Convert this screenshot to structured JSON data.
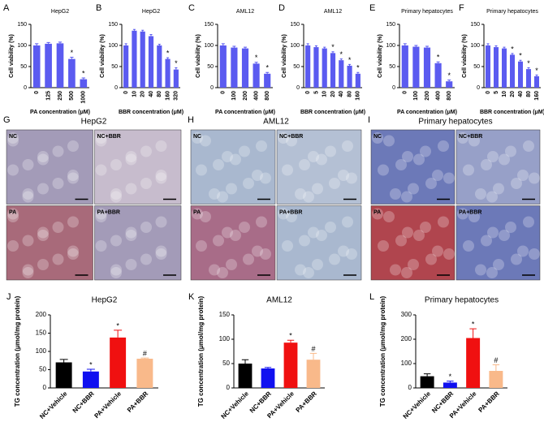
{
  "chart_data": [
    {
      "type": "bar",
      "panel": "A",
      "title": "HepG2",
      "y_label": "Cell viability (%)",
      "x_label": "PA concentration (μM)",
      "color": "#5b5bf0",
      "categories": [
        "0",
        "125",
        "250",
        "500",
        "1000"
      ],
      "values": [
        100,
        104,
        105,
        68,
        20
      ],
      "errors": [
        4,
        3,
        3,
        4,
        3
      ],
      "annotations": [
        null,
        null,
        null,
        "*",
        "*"
      ],
      "ylim": [
        0,
        150
      ],
      "yticks": [
        0,
        50,
        100,
        150
      ]
    },
    {
      "type": "bar",
      "panel": "B",
      "title": "HepG2",
      "y_label": "Cell viability (%)",
      "x_label": "BBR concentration (μM)",
      "color": "#5b5bf0",
      "categories": [
        "0",
        "10",
        "20",
        "40",
        "80",
        "160",
        "320"
      ],
      "values": [
        100,
        135,
        133,
        122,
        100,
        68,
        43
      ],
      "errors": [
        4,
        3,
        3,
        4,
        3,
        3,
        4
      ],
      "annotations": [
        null,
        null,
        null,
        null,
        null,
        "*",
        "*"
      ],
      "ylim": [
        0,
        150
      ],
      "yticks": [
        0,
        50,
        100,
        150
      ]
    },
    {
      "type": "bar",
      "panel": "C",
      "title": "AML12",
      "y_label": "Cell viability (%)",
      "x_label": "PA concentration (μM)",
      "color": "#5b5bf0",
      "categories": [
        "0",
        "100",
        "200",
        "400",
        "800"
      ],
      "values": [
        100,
        95,
        93,
        57,
        33
      ],
      "errors": [
        4,
        3,
        3,
        3,
        3
      ],
      "annotations": [
        null,
        null,
        null,
        "*",
        "*"
      ],
      "ylim": [
        0,
        150
      ],
      "yticks": [
        0,
        50,
        100,
        150
      ]
    },
    {
      "type": "bar",
      "panel": "D",
      "title": "AML12",
      "y_label": "Cell viability (%)",
      "x_label": "BBR concentration (μM)",
      "color": "#5b5bf0",
      "categories": [
        "0",
        "5",
        "10",
        "20",
        "40",
        "80",
        "160"
      ],
      "values": [
        100,
        96,
        93,
        82,
        65,
        52,
        33
      ],
      "errors": [
        4,
        3,
        3,
        3,
        3,
        3,
        3
      ],
      "annotations": [
        null,
        null,
        null,
        "*",
        "*",
        "*",
        "*"
      ],
      "ylim": [
        0,
        150
      ],
      "yticks": [
        0,
        50,
        100,
        150
      ]
    },
    {
      "type": "bar",
      "panel": "E",
      "title": "Primary hepatocytes",
      "y_label": "Cell viability (%)",
      "x_label": "PA concentration (μM)",
      "color": "#5b5bf0",
      "categories": [
        "0",
        "100",
        "200",
        "400",
        "800"
      ],
      "values": [
        100,
        97,
        95,
        58,
        15
      ],
      "errors": [
        4,
        3,
        3,
        3,
        3
      ],
      "annotations": [
        null,
        null,
        null,
        "*",
        "*"
      ],
      "ylim": [
        0,
        150
      ],
      "yticks": [
        0,
        50,
        100,
        150
      ]
    },
    {
      "type": "bar",
      "panel": "F",
      "title": "Primary hepatocytes",
      "y_label": "Cell viability (%)",
      "x_label": "BBR concentration (μM)",
      "color": "#5b5bf0",
      "categories": [
        "0",
        "5",
        "10",
        "20",
        "40",
        "80",
        "160"
      ],
      "values": [
        100,
        96,
        93,
        78,
        62,
        44,
        27
      ],
      "errors": [
        4,
        3,
        3,
        3,
        3,
        3,
        3
      ],
      "annotations": [
        null,
        null,
        null,
        "*",
        "*",
        "*",
        "*"
      ],
      "ylim": [
        0,
        150
      ],
      "yticks": [
        0,
        50,
        100,
        150
      ]
    },
    {
      "type": "bar",
      "panel": "J",
      "title": "HepG2",
      "y_label": "TG concentration (μmol/mg protein)",
      "colors": [
        "#000000",
        "#1010f0",
        "#f01010",
        "#f9b98a"
      ],
      "categories": [
        "NC+Vehicle",
        "NC+BBR",
        "PA+Vehicle",
        "PA+BBR"
      ],
      "values": [
        70,
        45,
        138,
        80
      ],
      "errors": [
        8,
        6,
        20,
        2
      ],
      "annotations": [
        null,
        "*",
        "*",
        "#"
      ],
      "ylim": [
        0,
        200
      ],
      "yticks": [
        0,
        50,
        100,
        150,
        200
      ]
    },
    {
      "type": "bar",
      "panel": "K",
      "title": "AML12",
      "y_label": "TG concentration (μmol/mg protein)",
      "colors": [
        "#000000",
        "#1010f0",
        "#f01010",
        "#f9b98a"
      ],
      "categories": [
        "NC+Vehicle",
        "NC+BBR",
        "PA+Vehicle",
        "PA+BBR"
      ],
      "values": [
        50,
        40,
        93,
        58
      ],
      "errors": [
        8,
        2,
        5,
        13
      ],
      "annotations": [
        null,
        null,
        "*",
        "#"
      ],
      "ylim": [
        0,
        150
      ],
      "yticks": [
        0,
        50,
        100,
        150
      ]
    },
    {
      "type": "bar",
      "panel": "L",
      "title": "Primary hepatocytes",
      "y_label": "TG concentration (μmol/mg protein)",
      "colors": [
        "#000000",
        "#1010f0",
        "#f01010",
        "#f9b98a"
      ],
      "categories": [
        "NC+Vehicle",
        "NC+BBR",
        "PA+Vehicle",
        "PA+BBR"
      ],
      "values": [
        48,
        22,
        205,
        70
      ],
      "errors": [
        10,
        6,
        38,
        25
      ],
      "annotations": [
        null,
        "*",
        "*",
        "#"
      ],
      "ylim": [
        0,
        300
      ],
      "yticks": [
        0,
        100,
        200,
        300
      ]
    }
  ],
  "micrographs": [
    {
      "panel": "G",
      "title": "HepG2",
      "tiles": [
        "NC",
        "NC+BBR",
        "PA",
        "PA+BBR"
      ]
    },
    {
      "panel": "H",
      "title": "AML12",
      "tiles": [
        "NC",
        "NC+BBR",
        "PA",
        "PA+BBR"
      ]
    },
    {
      "panel": "I",
      "title": "Primary hepatocytes",
      "tiles": [
        "NC",
        "NC+BBR",
        "PA",
        "PA+BBR"
      ]
    }
  ]
}
